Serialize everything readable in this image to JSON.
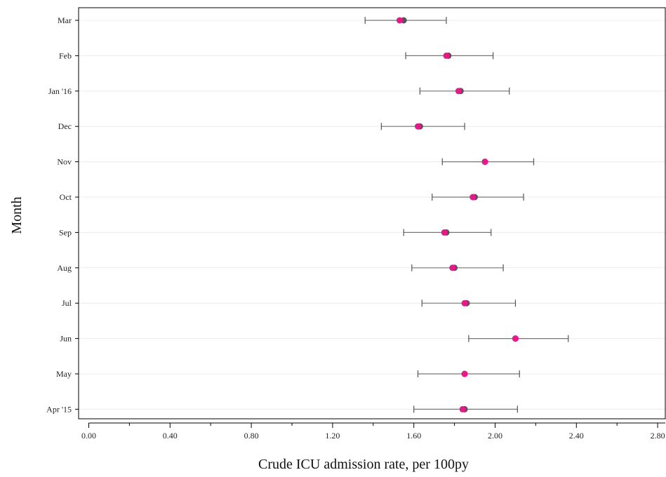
{
  "chart_data": {
    "type": "scatter",
    "xlabel": "Crude ICU admission rate, per 100py",
    "ylabel": "Month",
    "xlim": [
      -0.08,
      2.85
    ],
    "x_ticks": [
      "0.00",
      "0.40",
      "0.80",
      "1.20",
      "1.60",
      "2.00",
      "2.40",
      "2.80"
    ],
    "x_tick_values": [
      0.0,
      0.4,
      0.8,
      1.2,
      1.6,
      2.0,
      2.4,
      2.8
    ],
    "grid": "horizontal",
    "legend": "none",
    "categories": [
      "Mar",
      "Feb",
      "Jan '16",
      "Dec",
      "Nov",
      "Oct",
      "Sep",
      "Aug",
      "Jul",
      "Jun",
      "May",
      "Apr '15"
    ],
    "series": [
      {
        "values": [
          1.55,
          1.77,
          1.83,
          1.63,
          1.95,
          1.9,
          1.76,
          1.8,
          1.86,
          2.1,
          1.85,
          1.85
        ],
        "ci_low": [
          1.36,
          1.56,
          1.63,
          1.44,
          1.74,
          1.69,
          1.55,
          1.59,
          1.64,
          1.87,
          1.62,
          1.6
        ],
        "ci_high": [
          1.76,
          1.99,
          2.07,
          1.85,
          2.19,
          2.14,
          1.98,
          2.04,
          2.1,
          2.36,
          2.12,
          2.11
        ],
        "color": "#555555"
      },
      {
        "values": [
          1.53,
          1.76,
          1.82,
          1.62,
          1.95,
          1.89,
          1.75,
          1.79,
          1.85,
          2.1,
          1.85,
          1.84
        ],
        "color": "#e8178a"
      }
    ]
  }
}
